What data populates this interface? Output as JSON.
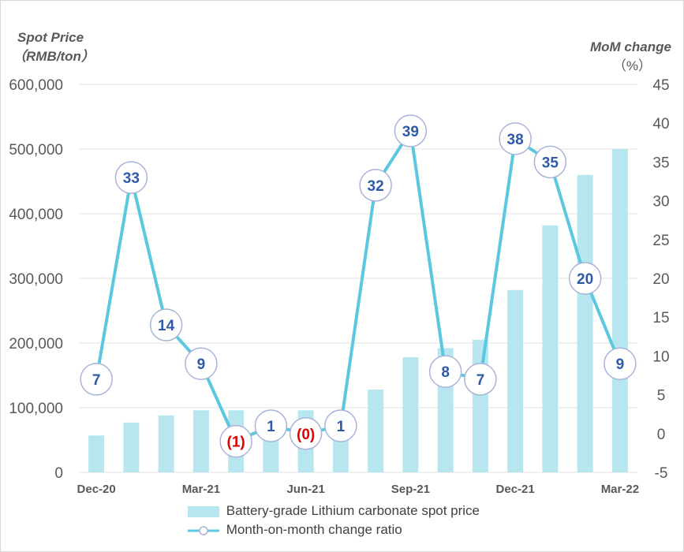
{
  "chart_data": {
    "type": "bar+line",
    "left_axis_title_line1": "Spot Price",
    "left_axis_title_line2": "（RMB/ton）",
    "right_axis_title_line1": "MoM change",
    "right_axis_title_line2": "（%）",
    "x_tick_labels": [
      "Dec-20",
      "Mar-21",
      "Jun-21",
      "Sep-21",
      "Dec-21",
      "Mar-22"
    ],
    "categories": [
      "Dec-20",
      "Jan-21",
      "Feb-21",
      "Mar-21",
      "Apr-21",
      "May-21",
      "Jun-21",
      "Jul-21",
      "Aug-21",
      "Sep-21",
      "Oct-21",
      "Nov-21",
      "Dec-21",
      "Jan-22",
      "Feb-22",
      "Mar-22"
    ],
    "bar_series": {
      "name": "Battery-grade Lithium carbonate spot price",
      "axis": "left",
      "color": "#b7e6ef",
      "values": [
        57000,
        77000,
        88000,
        96000,
        96000,
        90000,
        96000,
        95000,
        128000,
        178000,
        192000,
        205000,
        282000,
        382000,
        460000,
        500000
      ]
    },
    "line_series": {
      "name": "Month-on-month change ratio",
      "axis": "right",
      "color": "#5bc8e0",
      "values": [
        7,
        33,
        14,
        9,
        -1,
        1,
        0,
        1,
        32,
        39,
        8,
        7,
        38,
        35,
        20,
        9
      ],
      "labels": [
        "7",
        "33",
        "14",
        "9",
        "(1)",
        "1",
        "(0)",
        "1",
        "32",
        "39",
        "8",
        "7",
        "38",
        "35",
        "20",
        "9"
      ],
      "negative_label_color": "#e00000",
      "label_color": "#2e5aa8"
    },
    "left_axis": {
      "min": 0,
      "max": 600000,
      "ticks": [
        "0",
        "100,000",
        "200,000",
        "300,000",
        "400,000",
        "500,000",
        "600,000"
      ]
    },
    "right_axis": {
      "min": -5,
      "max": 45,
      "ticks": [
        "-5",
        "0",
        "5",
        "10",
        "15",
        "20",
        "25",
        "30",
        "35",
        "40",
        "45"
      ]
    },
    "grid": true,
    "legend_position": "bottom"
  }
}
